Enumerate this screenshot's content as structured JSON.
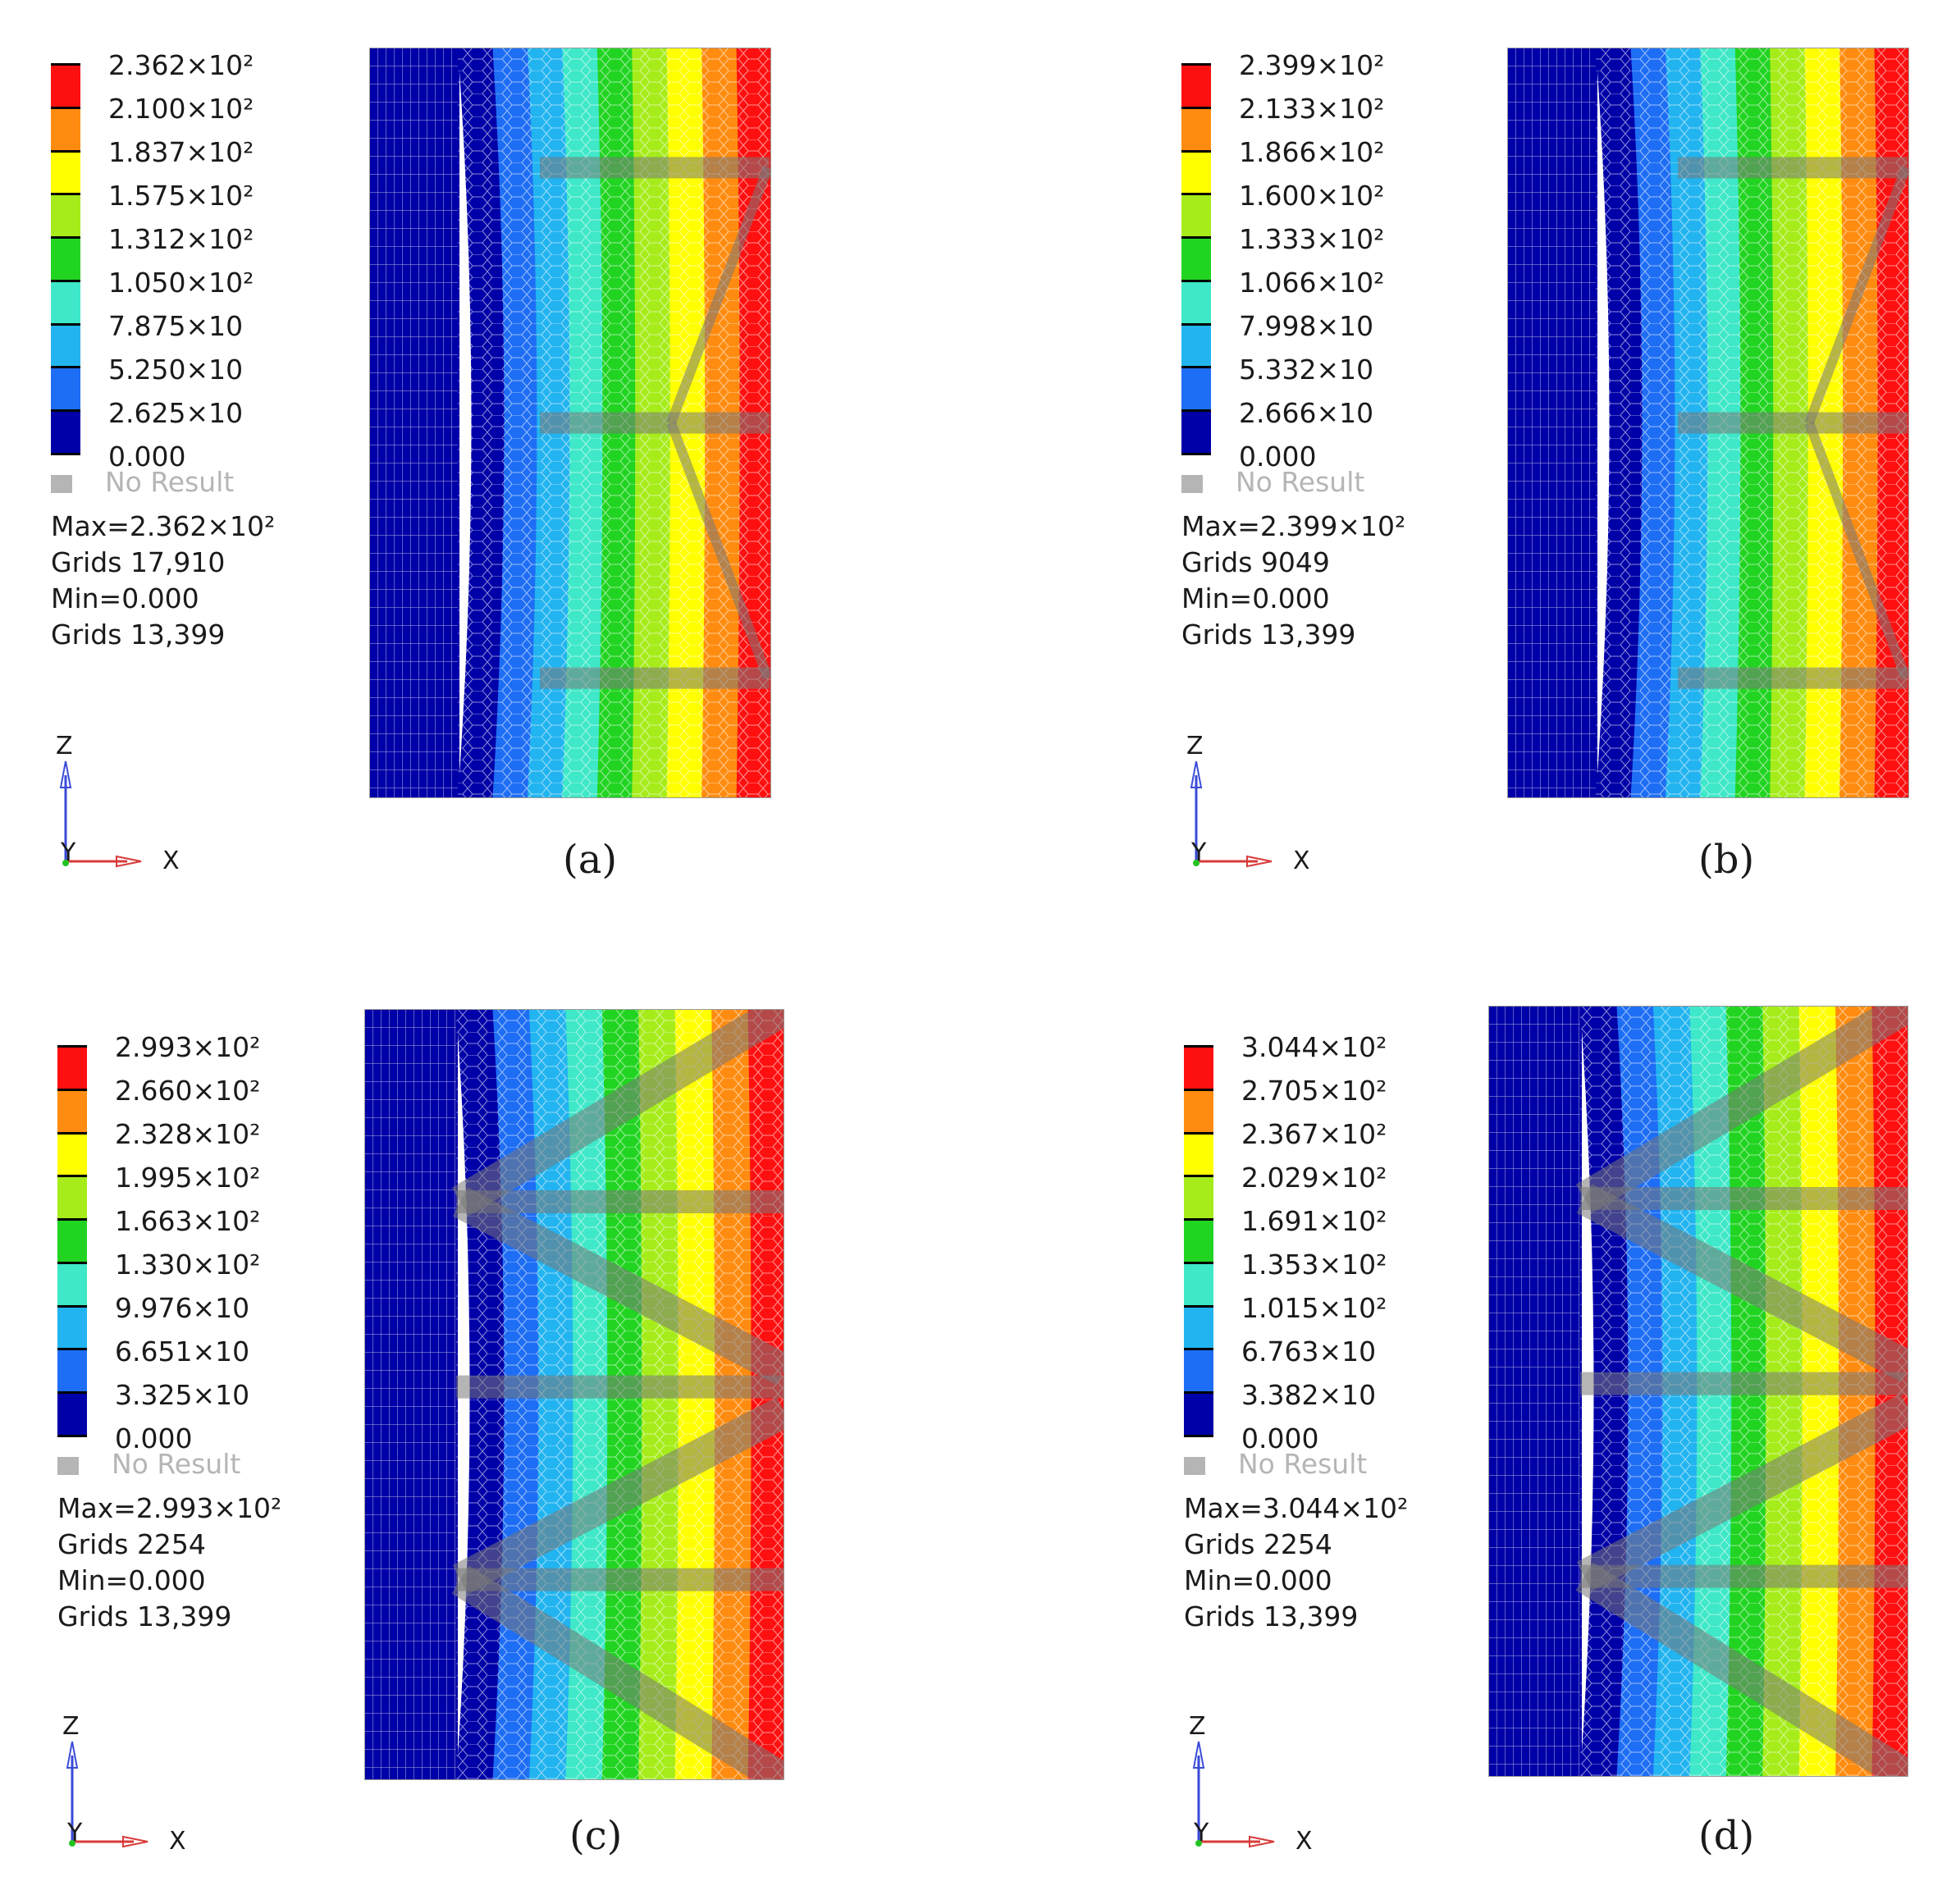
{
  "colors": [
    "#0000a8",
    "#1e6ef5",
    "#22b4f0",
    "#3ee8c8",
    "#22d422",
    "#a6ec1a",
    "#ffff00",
    "#ff8c10",
    "#ff1010"
  ],
  "no_result_label": "No Result",
  "axis_labels": {
    "z": "Z",
    "y": "Y",
    "x": "X"
  },
  "panels": [
    {
      "caption": "(a)",
      "legend_values": [
        "2.362×10²",
        "2.100×10²",
        "1.837×10²",
        "1.575×10²",
        "1.312×10²",
        "1.050×10²",
        "7.875×10",
        "5.250×10",
        "2.625×10",
        "0.000"
      ],
      "max_line": "Max=2.362×10²",
      "max_grids": "Grids 17,910",
      "min_line": "Min=0.000",
      "min_grids": "Grids 13,399",
      "truss": "single-k"
    },
    {
      "caption": "(b)",
      "legend_values": [
        "2.399×10²",
        "2.133×10²",
        "1.866×10²",
        "1.600×10²",
        "1.333×10²",
        "1.066×10²",
        "7.998×10",
        "5.332×10",
        "2.666×10",
        "0.000"
      ],
      "max_line": "Max=2.399×10²",
      "max_grids": "Grids 9049",
      "min_line": "Min=0.000",
      "min_grids": "Grids 13,399",
      "truss": "single-k"
    },
    {
      "caption": "(c)",
      "legend_values": [
        "2.993×10²",
        "2.660×10²",
        "2.328×10²",
        "1.995×10²",
        "1.663×10²",
        "1.330×10²",
        "9.976×10",
        "6.651×10",
        "3.325×10",
        "0.000"
      ],
      "max_line": "Max=2.993×10²",
      "max_grids": "Grids 2254",
      "min_line": "Min=0.000",
      "min_grids": "Grids 13,399",
      "truss": "double-w"
    },
    {
      "caption": "(d)",
      "legend_values": [
        "3.044×10²",
        "2.705×10²",
        "2.367×10²",
        "2.029×10²",
        "1.691×10²",
        "1.353×10²",
        "1.015×10²",
        "6.763×10",
        "3.382×10",
        "0.000"
      ],
      "max_line": "Max=3.044×10²",
      "max_grids": "Grids 2254",
      "min_line": "Min=0.000",
      "min_grids": "Grids 13,399",
      "truss": "double-w"
    }
  ]
}
